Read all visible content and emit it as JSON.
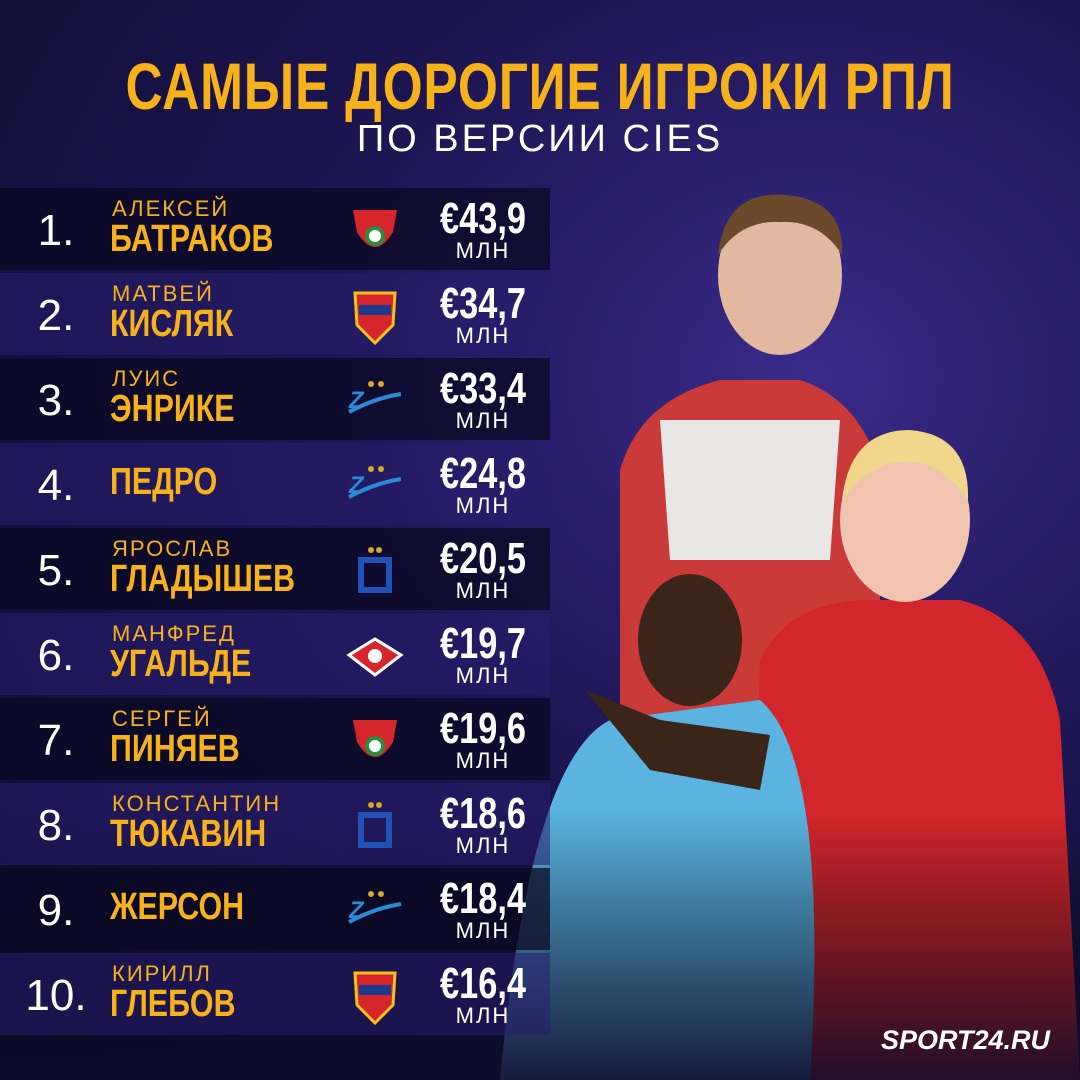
{
  "header": {
    "title": "САМЫЕ ДОРОГИЕ ИГРОКИ РПЛ",
    "subtitle": "ПО ВЕРСИИ CIES"
  },
  "rows": [
    {
      "rank": "1.",
      "first": "АЛЕКСЕЙ",
      "last": "БАТРАКОВ",
      "value": "€43,9",
      "unit": "МЛН"
    },
    {
      "rank": "2.",
      "first": "МАТВЕЙ",
      "last": "КИСЛЯК",
      "value": "€34,7",
      "unit": "МЛН"
    },
    {
      "rank": "3.",
      "first": "ЛУИС",
      "last": "ЭНРИКЕ",
      "value": "€33,4",
      "unit": "МЛН"
    },
    {
      "rank": "4.",
      "last": "ПЕДРО",
      "value": "€24,8",
      "unit": "МЛН"
    },
    {
      "rank": "5.",
      "first": "ЯРОСЛАВ",
      "last": "ГЛАДЫШЕВ",
      "value": "€20,5",
      "unit": "МЛН"
    },
    {
      "rank": "6.",
      "first": "МАНФРЕД",
      "last": "УГАЛЬДЕ",
      "value": "€19,7",
      "unit": "МЛН"
    },
    {
      "rank": "7.",
      "first": "СЕРГЕЙ",
      "last": "ПИНЯЕВ",
      "value": "€19,6",
      "unit": "МЛН"
    },
    {
      "rank": "8.",
      "first": "КОНСТАНТИН",
      "last": "ТЮКАВИН",
      "value": "€18,6",
      "unit": "МЛН"
    },
    {
      "rank": "9.",
      "last": "ЖЕРСОН",
      "value": "€18,4",
      "unit": "МЛН"
    },
    {
      "rank": "10.",
      "first": "КИРИЛЛ",
      "last": "ГЛЕБОВ",
      "value": "€16,4",
      "unit": "МЛН"
    }
  ],
  "footer": {
    "brand": "SPORT24.RU"
  }
}
